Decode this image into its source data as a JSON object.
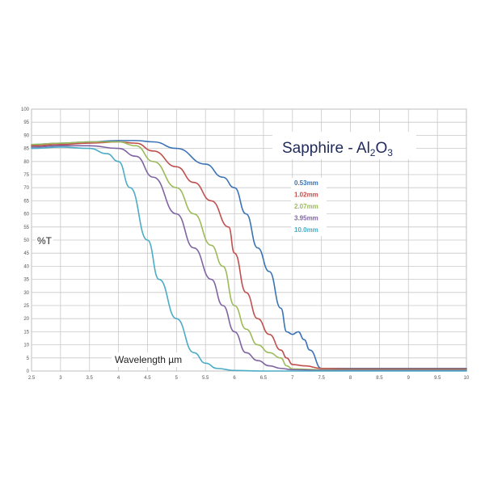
{
  "chart_data": {
    "type": "line",
    "title_main": "Sapphire - Al",
    "title_sub1": "2",
    "title_mid": "O",
    "title_sub2": "3",
    "ylabel": "%T",
    "xlabel": "Wavelength µm",
    "xlim": [
      2.5,
      10
    ],
    "ylim": [
      0,
      100
    ],
    "xticks": [
      "2.5",
      "3",
      "3.5",
      "4",
      "4.5",
      "5",
      "5.5",
      "6",
      "6.5",
      "7",
      "7.5",
      "8",
      "8.5",
      "9",
      "9.5",
      "10"
    ],
    "yticks": [
      "0",
      "5",
      "10",
      "15",
      "20",
      "25",
      "30",
      "35",
      "40",
      "45",
      "50",
      "55",
      "60",
      "65",
      "70",
      "75",
      "80",
      "85",
      "90",
      "95",
      "100"
    ],
    "grid": true,
    "legend_position": "top-right",
    "series": [
      {
        "name": "0.53mm",
        "color": "#3a73b5",
        "x": [
          2.5,
          3,
          3.5,
          4,
          4.3,
          4.6,
          5,
          5.5,
          5.8,
          6,
          6.2,
          6.4,
          6.6,
          6.8,
          6.9,
          7,
          7.1,
          7.2,
          7.3,
          7.5,
          8,
          9,
          10
        ],
        "y": [
          86.5,
          87,
          87.5,
          88,
          88,
          87.5,
          85,
          79,
          74,
          70,
          60,
          47,
          38,
          24,
          15,
          14,
          15,
          12,
          8,
          1,
          1,
          1,
          1
        ]
      },
      {
        "name": "1.02mm",
        "color": "#c0504d",
        "x": [
          2.5,
          3,
          3.5,
          4,
          4.3,
          4.6,
          5,
          5.3,
          5.6,
          5.9,
          6,
          6.2,
          6.4,
          6.6,
          6.8,
          6.9,
          7,
          7.2,
          7.5,
          8,
          9,
          10
        ],
        "y": [
          86,
          86.5,
          87,
          87.5,
          87,
          84,
          78,
          72,
          65,
          55,
          45,
          30,
          20,
          14,
          8,
          5,
          2.5,
          2,
          1,
          0.8,
          0.8,
          0.8
        ]
      },
      {
        "name": "2.07mm",
        "color": "#9bbb59",
        "x": [
          2.5,
          3,
          3.5,
          4,
          4.3,
          4.6,
          5,
          5.3,
          5.6,
          5.8,
          6,
          6.2,
          6.4,
          6.6,
          6.8,
          6.9,
          7,
          7.5,
          8,
          9,
          10
        ],
        "y": [
          86.5,
          87,
          87.5,
          87.5,
          86,
          80,
          70,
          60,
          48,
          40,
          25,
          16,
          10,
          7,
          5,
          2,
          0.8,
          0.5,
          0.5,
          0.5,
          0.5
        ]
      },
      {
        "name": "3.95mm",
        "color": "#8064a2",
        "x": [
          2.5,
          3,
          3.5,
          4,
          4.3,
          4.6,
          5,
          5.3,
          5.6,
          5.8,
          6,
          6.2,
          6.4,
          6.6,
          6.8,
          7,
          7.5,
          8,
          9,
          10
        ],
        "y": [
          85.5,
          86,
          86,
          85,
          82,
          74,
          60,
          47,
          35,
          25,
          15,
          7,
          4,
          2,
          1,
          0.5,
          0.3,
          0.3,
          0.3,
          0.3
        ]
      },
      {
        "name": "10.0mm",
        "color": "#4bacc6",
        "x": [
          2.5,
          3,
          3.5,
          3.8,
          4,
          4.2,
          4.5,
          4.7,
          5,
          5.3,
          5.5,
          5.7,
          6,
          6.5,
          7,
          8,
          9,
          10
        ],
        "y": [
          85,
          85.5,
          85,
          83,
          80,
          70,
          50,
          35,
          20,
          7,
          3,
          1,
          0.2,
          0,
          0,
          0,
          0,
          0
        ]
      }
    ]
  }
}
